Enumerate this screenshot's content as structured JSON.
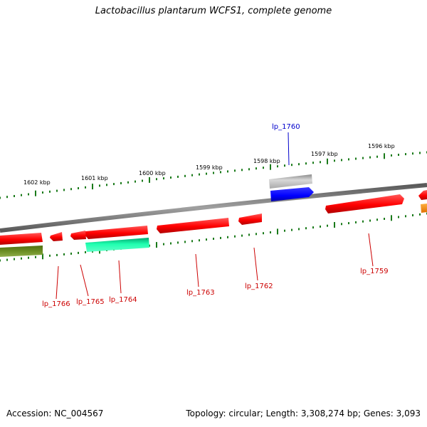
{
  "title": "Lactobacillus plantarum WCFS1, complete genome",
  "footer": {
    "accession": "Accession: NC_004567",
    "stats": "Topology: circular; Length: 3,308,274 bp; Genes: 3,093"
  },
  "colors": {
    "backbone": "#7a7a7a",
    "cds": "#ff1010",
    "cds_dark": "#b80000",
    "rna_gray": "#b0b0b0",
    "blue": "#0000ff",
    "teal": "#10f0a0",
    "olive": "#6b8e23",
    "orange": "#ff8c00",
    "label_red": "#cc0000",
    "label_blue": "#0000cc",
    "tick_green": "#1a7a1a"
  },
  "kbp_labels": [
    "1602 kbp",
    "1601 kbp",
    "1600 kbp",
    "1599 kbp",
    "1598 kbp",
    "1597 kbp",
    "1596 kbp"
  ],
  "gene_labels": [
    "lp_1760",
    "lp_1766",
    "lp_1765",
    "lp_1764",
    "lp_1763",
    "lp_1762",
    "lp_1759"
  ]
}
